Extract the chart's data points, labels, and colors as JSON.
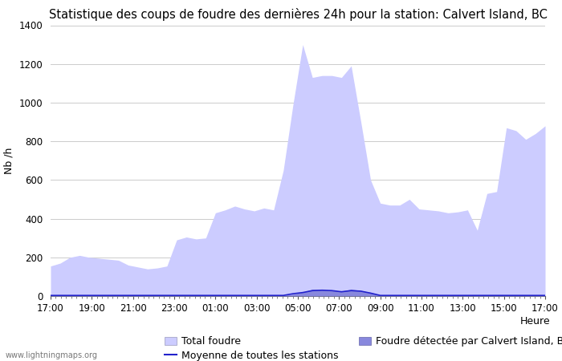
{
  "title": "Statistique des coups de foudre des dernières 24h pour la station: Calvert Island, BC",
  "xlabel": "Heure",
  "ylabel": "Nb /h",
  "watermark": "www.lightningmaps.org",
  "xlim": [
    0,
    48
  ],
  "ylim": [
    0,
    1400
  ],
  "yticks": [
    0,
    200,
    400,
    600,
    800,
    1000,
    1200,
    1400
  ],
  "xtick_labels": [
    "17:00",
    "19:00",
    "21:00",
    "23:00",
    "01:00",
    "03:00",
    "05:00",
    "07:00",
    "09:00",
    "11:00",
    "13:00",
    "15:00",
    "17:00"
  ],
  "xtick_positions": [
    0,
    4,
    8,
    12,
    16,
    20,
    24,
    28,
    32,
    36,
    40,
    44,
    48
  ],
  "total_foudre_color": "#ccccff",
  "detected_foudre_color": "#8888dd",
  "moyenne_color": "#2222cc",
  "background_color": "#ffffff",
  "plot_bg_color": "#ffffff",
  "total_foudre": [
    155,
    170,
    200,
    210,
    200,
    195,
    190,
    185,
    160,
    150,
    140,
    145,
    155,
    290,
    305,
    295,
    300,
    430,
    445,
    465,
    450,
    440,
    455,
    445,
    650,
    990,
    1300,
    1130,
    1140,
    1140,
    1130,
    1190,
    900,
    600,
    480,
    470,
    470,
    500,
    450,
    445,
    440,
    430,
    435,
    445,
    340,
    530,
    540,
    870,
    855,
    810,
    840,
    880
  ],
  "detected_foudre": [
    3,
    3,
    3,
    3,
    3,
    3,
    3,
    3,
    3,
    3,
    3,
    3,
    3,
    3,
    3,
    3,
    3,
    3,
    3,
    3,
    3,
    3,
    3,
    3,
    3,
    10,
    20,
    35,
    32,
    30,
    25,
    35,
    28,
    18,
    3,
    3,
    3,
    3,
    3,
    3,
    3,
    3,
    3,
    3,
    3,
    3,
    3,
    3,
    3,
    3,
    3,
    3
  ],
  "moyenne": [
    3,
    3,
    3,
    3,
    3,
    3,
    3,
    3,
    3,
    3,
    3,
    3,
    3,
    3,
    3,
    3,
    3,
    3,
    3,
    3,
    3,
    3,
    3,
    3,
    3,
    12,
    18,
    28,
    30,
    28,
    22,
    28,
    25,
    15,
    3,
    3,
    3,
    3,
    3,
    3,
    3,
    3,
    3,
    3,
    3,
    3,
    3,
    3,
    3,
    3,
    3,
    3
  ],
  "legend_total_label": "Total foudre",
  "legend_detected_label": "Foudre détectée par Calvert Island, BC",
  "legend_moyenne_label": "Moyenne de toutes les stations",
  "title_fontsize": 10.5,
  "label_fontsize": 9,
  "tick_fontsize": 8.5
}
